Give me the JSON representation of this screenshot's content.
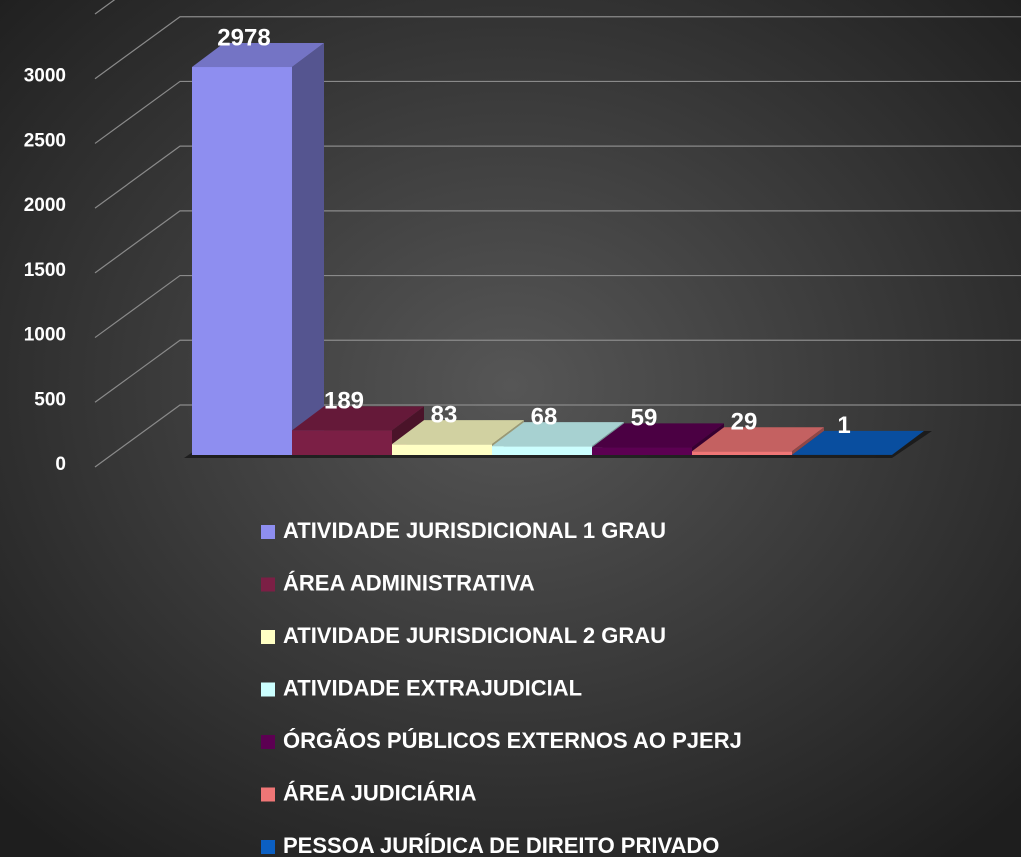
{
  "chart_data": {
    "type": "bar3d",
    "categories": [
      "ATIVIDADE JURISDICIONAL 1 GRAU",
      "ÁREA ADMINISTRATIVA",
      "ATIVIDADE JURISDICIONAL 2 GRAU",
      "ATIVIDADE EXTRAJUDICIAL",
      "ÓRGÃOS PÚBLICOS EXTERNOS AO PJERJ",
      "ÁREA JUDICIÁRIA",
      "PESSOA JURÍDICA DE DIREITO PRIVADO"
    ],
    "values": [
      2978,
      189,
      83,
      68,
      59,
      29,
      1
    ],
    "colors": [
      "#8e8ef0",
      "#7b1f45",
      "#ffffc4",
      "#ccffff",
      "#5c0052",
      "#ef7676",
      "#0b5fc2"
    ],
    "ylim": [
      0,
      3500
    ],
    "yticks": [
      0,
      500,
      1000,
      1500,
      2000,
      2500,
      3000
    ],
    "grid": true,
    "legend": "bottom"
  }
}
